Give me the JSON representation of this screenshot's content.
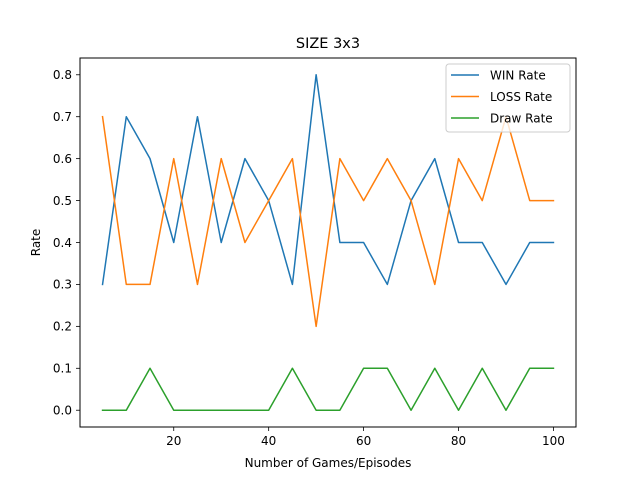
{
  "chart_data": {
    "type": "line",
    "title": "SIZE 3x3",
    "xlabel": "Number of Games/Episodes",
    "ylabel": "Rate",
    "x": [
      5,
      10,
      15,
      20,
      25,
      30,
      35,
      40,
      45,
      50,
      55,
      60,
      65,
      70,
      75,
      80,
      85,
      90,
      95,
      100
    ],
    "xlim": [
      0.25,
      104.75
    ],
    "ylim": [
      -0.04,
      0.84
    ],
    "xticks": [
      20,
      40,
      60,
      80,
      100
    ],
    "yticks": [
      0.0,
      0.1,
      0.2,
      0.3,
      0.4,
      0.5,
      0.6,
      0.7,
      0.8
    ],
    "xtick_labels": [
      "20",
      "40",
      "60",
      "80",
      "100"
    ],
    "ytick_labels": [
      "0.0",
      "0.1",
      "0.2",
      "0.3",
      "0.4",
      "0.5",
      "0.6",
      "0.7",
      "0.8"
    ],
    "grid": false,
    "legend_position": "top-right",
    "series": [
      {
        "name": "WIN Rate",
        "color": "#1f77b4",
        "values": [
          0.3,
          0.7,
          0.6,
          0.4,
          0.7,
          0.4,
          0.6,
          0.5,
          0.3,
          0.8,
          0.4,
          0.4,
          0.3,
          0.5,
          0.6,
          0.4,
          0.4,
          0.3,
          0.4,
          0.4
        ]
      },
      {
        "name": "LOSS Rate",
        "color": "#ff7f0e",
        "values": [
          0.7,
          0.3,
          0.3,
          0.6,
          0.3,
          0.6,
          0.4,
          0.5,
          0.6,
          0.2,
          0.6,
          0.5,
          0.6,
          0.5,
          0.3,
          0.6,
          0.5,
          0.7,
          0.5,
          0.5
        ]
      },
      {
        "name": "Draw Rate",
        "color": "#2ca02c",
        "values": [
          0.0,
          0.0,
          0.1,
          0.0,
          0.0,
          0.0,
          0.0,
          0.0,
          0.1,
          0.0,
          0.0,
          0.1,
          0.1,
          0.0,
          0.1,
          0.0,
          0.1,
          0.0,
          0.1,
          0.1
        ]
      }
    ]
  }
}
